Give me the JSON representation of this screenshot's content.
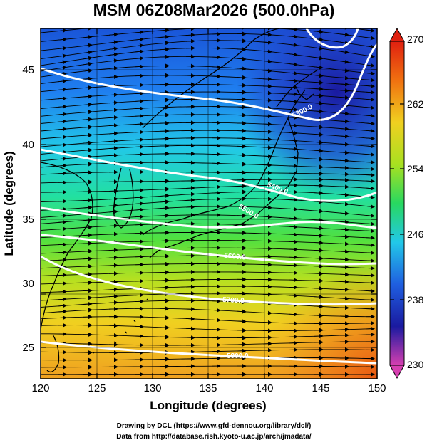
{
  "title": "MSM 06Z08Mar2026 (500.0hPa)",
  "x_axis": {
    "label": "Longitude (degrees)",
    "ticks": [
      "120",
      "125",
      "130",
      "135",
      "140",
      "145",
      "150"
    ],
    "range": [
      120,
      150
    ]
  },
  "y_axis": {
    "label": "Latitude  (degrees)",
    "ticks": [
      "25",
      "30",
      "35",
      "40",
      "45"
    ],
    "range": [
      22.4,
      47.6
    ]
  },
  "colorbar": {
    "labels": [
      "270",
      "262",
      "254",
      "246",
      "238",
      "230"
    ],
    "range": [
      230,
      270
    ],
    "colors": [
      "#d63fb0",
      "#1a1aa0",
      "#1f5fe0",
      "#22c8e8",
      "#28d860",
      "#a8e020",
      "#f0d020",
      "#f07010",
      "#e02010"
    ]
  },
  "contours": [
    {
      "label": "5300.0"
    },
    {
      "label": "5400.0"
    },
    {
      "label": "5500.0"
    },
    {
      "label": "5600.0"
    },
    {
      "label": "5700.0"
    },
    {
      "label": "5800.0"
    }
  ],
  "credits": {
    "line1": "Drawing by DCL (https://www.gfd-dennou.org/library/dcl/)",
    "line2": "Data from http://database.rish.kyoto-u.ac.jp/arch/jmadata/"
  }
}
